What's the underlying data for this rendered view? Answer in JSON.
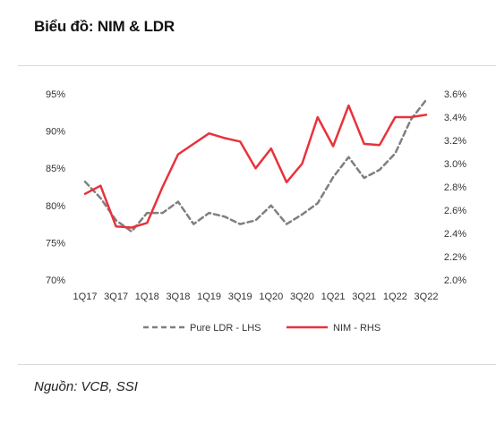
{
  "header": {
    "title": "Biểu đồ: NIM & LDR"
  },
  "source": "Nguồn: VCB, SSI",
  "chart_data": {
    "type": "line",
    "categories": [
      "1Q17",
      "2Q17",
      "3Q17",
      "4Q17",
      "1Q18",
      "2Q18",
      "3Q18",
      "4Q18",
      "1Q19",
      "2Q19",
      "3Q19",
      "4Q19",
      "1Q20",
      "2Q20",
      "3Q20",
      "4Q20",
      "1Q21",
      "2Q21",
      "3Q21",
      "4Q21",
      "1Q22",
      "2Q22",
      "3Q22"
    ],
    "xtick_labels": [
      "1Q17",
      "3Q17",
      "1Q18",
      "3Q18",
      "1Q19",
      "3Q19",
      "1Q20",
      "3Q20",
      "1Q21",
      "3Q21",
      "1Q22",
      "3Q22"
    ],
    "yticks_left": [
      "70%",
      "75%",
      "80%",
      "85%",
      "90%",
      "95%"
    ],
    "yticks_right": [
      "2.0%",
      "2.2%",
      "2.4%",
      "2.6%",
      "2.8%",
      "3.0%",
      "3.2%",
      "3.4%",
      "3.6%"
    ],
    "ylim_left": [
      70,
      95
    ],
    "ylim_right": [
      2.0,
      3.6
    ],
    "grid": false,
    "legend_position": "bottom",
    "series": [
      {
        "name": "Pure LDR - LHS",
        "axis": "left",
        "style": "dashed",
        "color": "#7f7f7f",
        "values": [
          83.2,
          81.0,
          78.0,
          76.5,
          79.0,
          79.0,
          80.5,
          77.5,
          79.0,
          78.5,
          77.5,
          78.0,
          80.0,
          77.5,
          78.8,
          80.3,
          83.8,
          86.5,
          83.7,
          84.8,
          87.0,
          91.5,
          94.2
        ]
      },
      {
        "name": "NIM - RHS",
        "axis": "right",
        "style": "solid",
        "color": "#e8323c",
        "values": [
          2.74,
          2.81,
          2.46,
          2.45,
          2.49,
          2.8,
          3.08,
          3.17,
          3.26,
          3.22,
          3.19,
          2.96,
          3.13,
          2.84,
          3.0,
          3.4,
          3.15,
          3.5,
          3.17,
          3.16,
          3.4,
          3.4,
          3.42
        ]
      }
    ]
  }
}
